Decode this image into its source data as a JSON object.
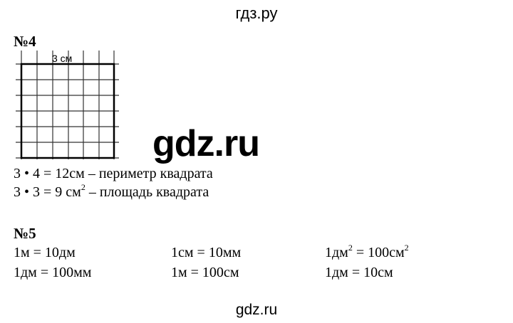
{
  "header": {
    "site": "гдз.ру"
  },
  "task4": {
    "number": "№4",
    "figure_label": "3 см",
    "line1": "3 • 4 = 12см – периметр квадрата",
    "line2_a": "3 • 3 = 9 см",
    "line2_sup": "2",
    "line2_b": " – площадь квадрата"
  },
  "watermark": "gdz.ru",
  "task5": {
    "number": "№5",
    "col1": [
      "1м = 10дм",
      "1дм = 100мм"
    ],
    "col2": [
      "1см = 10мм",
      "1м = 100см"
    ],
    "col3_row1": {
      "a": "1дм",
      "sup1": "2",
      "b": " = 100см",
      "sup2": "2"
    },
    "col3_row2": "1дм = 10см"
  },
  "footer": {
    "site": "gdz.ru"
  }
}
